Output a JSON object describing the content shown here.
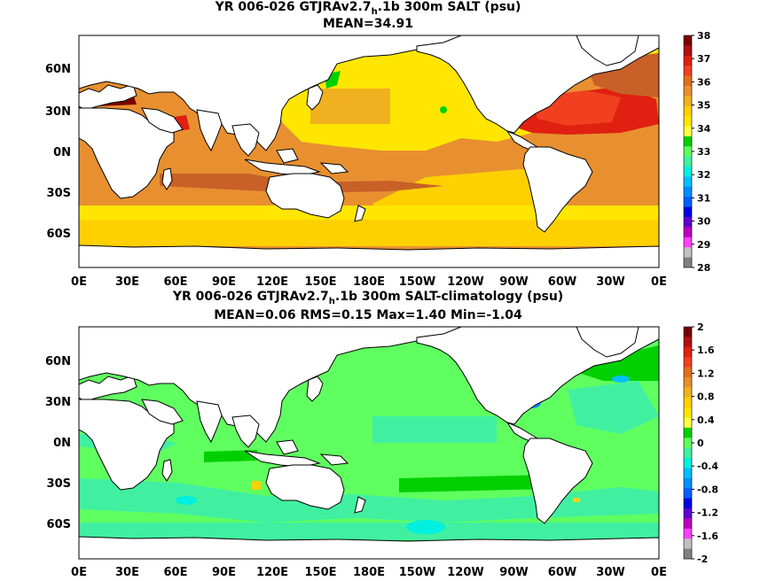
{
  "map1": {
    "title_pre": "YR 006-026 GTJRAv2.7",
    "title_sub": "h",
    "title_post": ".1b 300m SALT (psu)",
    "stats": "MEAN=34.91",
    "lat_labels": [
      "60N",
      "30N",
      "0N",
      "30S",
      "60S"
    ],
    "lon_labels": [
      "0E",
      "30E",
      "60E",
      "90E",
      "120E",
      "150E",
      "180E",
      "150W",
      "120W",
      "90W",
      "60W",
      "30W",
      "0E"
    ],
    "colorbar": {
      "labels": [
        "38",
        "37",
        "36",
        "35",
        "34",
        "33",
        "32",
        "31",
        "30",
        "29",
        "28"
      ],
      "colors": [
        "#7a0000",
        "#b01010",
        "#e02010",
        "#f04020",
        "#e0701c",
        "#e89030",
        "#f0b020",
        "#ffd000",
        "#ffe600",
        "#ffff40",
        "#00d000",
        "#60ff60",
        "#40f0a0",
        "#00f0e0",
        "#00c0ff",
        "#0090ff",
        "#0060ff",
        "#0000e0",
        "#6000d0",
        "#c000c0",
        "#ff40ff",
        "#c0c0c0",
        "#808080"
      ]
    }
  },
  "map2": {
    "title_pre": "YR 006-026 GTJRAv2.7",
    "title_sub": "h",
    "title_post": ".1b 300m SALT-climatology (psu)",
    "stats": "MEAN=0.06   RMS=0.15   Max=1.40   Min=-1.04",
    "lat_labels": [
      "60N",
      "30N",
      "0N",
      "30S",
      "60S"
    ],
    "lon_labels": [
      "0E",
      "30E",
      "60E",
      "90E",
      "120E",
      "150E",
      "180E",
      "150W",
      "120W",
      "90W",
      "60W",
      "30W",
      "0E"
    ],
    "colorbar": {
      "labels": [
        "2",
        "1.6",
        "1.2",
        "0.8",
        "0.4",
        "0",
        "-0.4",
        "-0.8",
        "-1.2",
        "-1.6",
        "-2"
      ],
      "colors": [
        "#7a0000",
        "#b01010",
        "#e02010",
        "#f04020",
        "#e0701c",
        "#e89030",
        "#f0b020",
        "#ffd000",
        "#ffe600",
        "#ffff40",
        "#00d000",
        "#60ff60",
        "#40f0a0",
        "#00f0e0",
        "#00c0ff",
        "#0090ff",
        "#0060ff",
        "#0000e0",
        "#6000d0",
        "#c000c0",
        "#ff40ff",
        "#c0c0c0",
        "#808080"
      ]
    }
  }
}
